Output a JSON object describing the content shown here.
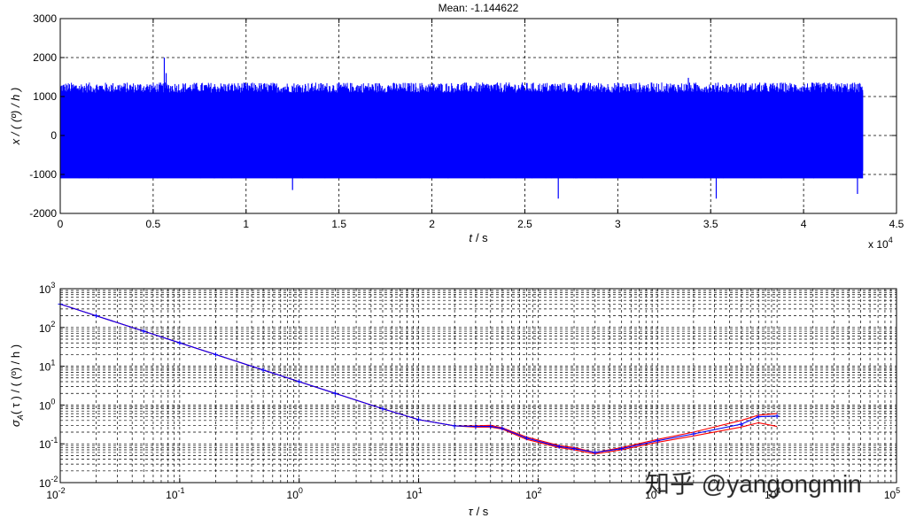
{
  "chart_data": [
    {
      "type": "line",
      "title": "Mean: -1.144622",
      "xlabel_var": "t",
      "xlabel_unit": "/ s",
      "ylabel": "x / ( (º) / h )",
      "x_exponent_label": "x 10",
      "x_exponent_power": "4",
      "xlim": [
        0,
        4.5
      ],
      "ylim": [
        -2000,
        3000
      ],
      "xticks": [
        0,
        0.5,
        1,
        1.5,
        2,
        2.5,
        3,
        3.5,
        4,
        4.5
      ],
      "xtick_labels": [
        "0",
        "0.5",
        "1",
        "1.5",
        "2",
        "2.5",
        "3",
        "3.5",
        "4",
        "4.5"
      ],
      "yticks": [
        -2000,
        -1000,
        0,
        1000,
        2000,
        3000
      ],
      "ytick_labels": [
        "-2000",
        "-1000",
        "0",
        "1000",
        "2000",
        "3000"
      ],
      "grid": true,
      "series": [
        {
          "color": "#0000ff",
          "x_range": [
            0,
            4.32
          ],
          "band_upper": 1100,
          "band_lower": -1100,
          "typical_upper_peak": 1300,
          "typical_lower_peak": -1300,
          "spikes": [
            {
              "x": 0.56,
              "y": 2000
            },
            {
              "x": 0.57,
              "y": 1600
            },
            {
              "x": 2.65,
              "y": 1320
            },
            {
              "x": 3.38,
              "y": 1480
            },
            {
              "x": 2.68,
              "y": -1620
            },
            {
              "x": 3.53,
              "y": -1620
            },
            {
              "x": 1.25,
              "y": -1400
            },
            {
              "x": 4.29,
              "y": -1500
            }
          ]
        }
      ]
    },
    {
      "type": "line",
      "xscale": "log",
      "yscale": "log",
      "xlabel_var": "τ",
      "xlabel_unit": "/ s",
      "ylabel_var": "σ",
      "ylabel_sub": "A",
      "ylabel_rest": "( τ ) / ( (º) / h )",
      "xlim": [
        0.01,
        100000
      ],
      "ylim": [
        0.01,
        1000
      ],
      "xtick_base": "10",
      "xtick_powers": [
        "-2",
        "-1",
        "0",
        "1",
        "2",
        "3",
        "4",
        "5"
      ],
      "ytick_base": "10",
      "ytick_powers": [
        "-2",
        "-1",
        "0",
        "1",
        "2",
        "3"
      ],
      "grid": true,
      "series": [
        {
          "color": "#0000ff",
          "markers": true,
          "points": [
            [
              0.01,
              400
            ],
            [
              0.02,
              200
            ],
            [
              0.05,
              80
            ],
            [
              0.1,
              40
            ],
            [
              0.2,
              20
            ],
            [
              0.5,
              8
            ],
            [
              1,
              4
            ],
            [
              2,
              2
            ],
            [
              5,
              0.8
            ],
            [
              10,
              0.42
            ],
            [
              20,
              0.29
            ],
            [
              30,
              0.28
            ],
            [
              40,
              0.28
            ],
            [
              50,
              0.25
            ],
            [
              80,
              0.14
            ],
            [
              150,
              0.085
            ],
            [
              200,
              0.075
            ],
            [
              300,
              0.06
            ],
            [
              500,
              0.075
            ],
            [
              1000,
              0.12
            ],
            [
              2000,
              0.18
            ],
            [
              5000,
              0.32
            ],
            [
              7000,
              0.5
            ],
            [
              10000,
              0.52
            ]
          ]
        },
        {
          "color": "#ff0000",
          "markers": false,
          "points": [
            [
              0.01,
              400
            ],
            [
              0.02,
              200
            ],
            [
              0.05,
              80
            ],
            [
              0.1,
              40
            ],
            [
              0.2,
              20
            ],
            [
              0.5,
              8
            ],
            [
              1,
              4
            ],
            [
              2,
              2
            ],
            [
              5,
              0.8
            ],
            [
              10,
              0.42
            ],
            [
              20,
              0.29
            ],
            [
              30,
              0.29
            ],
            [
              40,
              0.3
            ],
            [
              50,
              0.26
            ],
            [
              80,
              0.15
            ],
            [
              150,
              0.09
            ],
            [
              200,
              0.08
            ],
            [
              300,
              0.06
            ],
            [
              500,
              0.08
            ],
            [
              1000,
              0.13
            ],
            [
              2000,
              0.2
            ],
            [
              5000,
              0.4
            ],
            [
              7000,
              0.55
            ],
            [
              10000,
              0.6
            ]
          ]
        },
        {
          "color": "#ff0000",
          "markers": false,
          "points": [
            [
              0.01,
              400
            ],
            [
              0.02,
              200
            ],
            [
              0.05,
              80
            ],
            [
              0.1,
              40
            ],
            [
              0.2,
              20
            ],
            [
              0.5,
              8
            ],
            [
              1,
              4
            ],
            [
              2,
              2
            ],
            [
              5,
              0.8
            ],
            [
              10,
              0.42
            ],
            [
              20,
              0.29
            ],
            [
              30,
              0.27
            ],
            [
              40,
              0.27
            ],
            [
              50,
              0.24
            ],
            [
              80,
              0.13
            ],
            [
              150,
              0.08
            ],
            [
              200,
              0.07
            ],
            [
              300,
              0.055
            ],
            [
              500,
              0.07
            ],
            [
              1000,
              0.11
            ],
            [
              2000,
              0.16
            ],
            [
              5000,
              0.27
            ],
            [
              7000,
              0.35
            ],
            [
              10000,
              0.28
            ]
          ]
        }
      ]
    }
  ],
  "watermark": "知乎 @yangongmin"
}
